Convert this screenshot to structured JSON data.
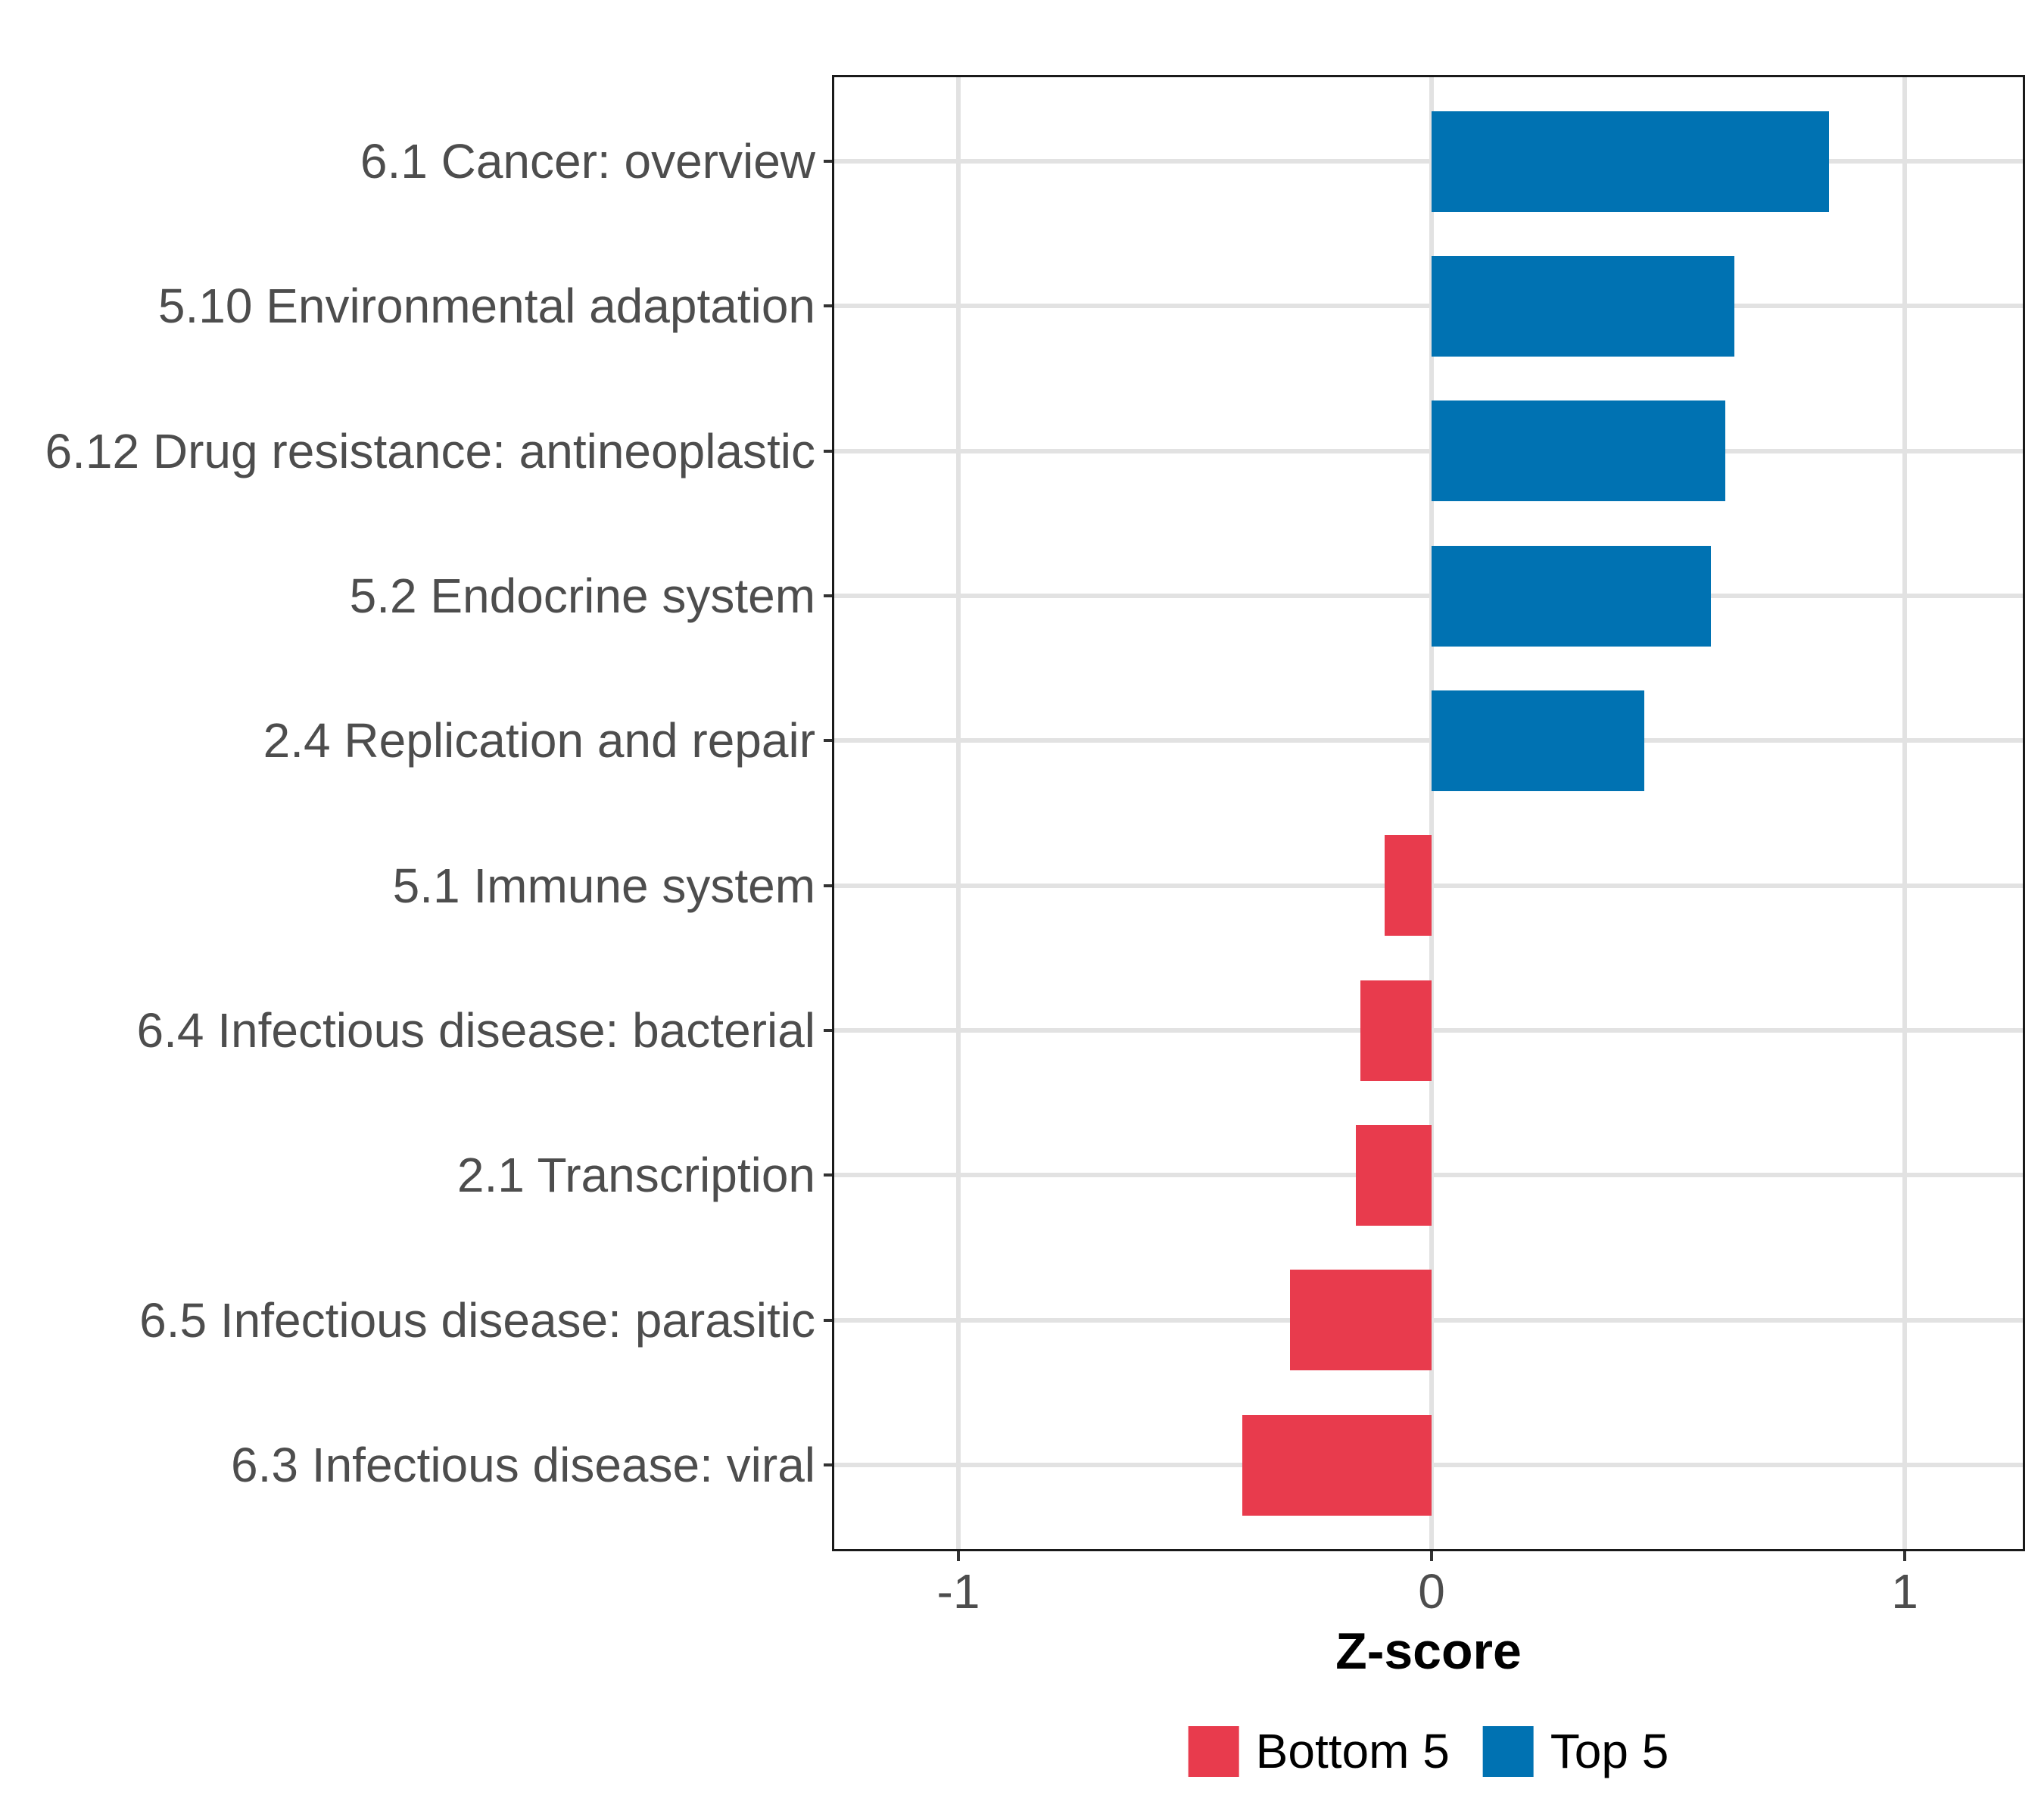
{
  "chart_data": {
    "type": "bar",
    "orientation": "horizontal",
    "title": "",
    "xlabel": "Z-score",
    "ylabel": "",
    "xlim": [
      -1.27,
      1.25
    ],
    "x_ticks": [
      -1,
      0,
      1
    ],
    "x_tick_labels": [
      "-1",
      "0",
      "1"
    ],
    "grid": "major-only",
    "panel_border": true,
    "legend_position": "bottom",
    "categories": [
      "6.1 Cancer: overview",
      "5.10 Environmental adaptation",
      "6.12 Drug resistance: antineoplastic",
      "5.2 Endocrine system",
      "2.4 Replication and repair",
      "5.1 Immune system",
      "6.4 Infectious disease: bacterial",
      "2.1 Transcription",
      "6.5 Infectious disease: parasitic",
      "6.3 Infectious disease: viral"
    ],
    "values": [
      0.84,
      0.64,
      0.62,
      0.59,
      0.45,
      -0.1,
      -0.15,
      -0.16,
      -0.3,
      -0.4
    ],
    "groups": [
      "Top 5",
      "Top 5",
      "Top 5",
      "Top 5",
      "Top 5",
      "Bottom 5",
      "Bottom 5",
      "Bottom 5",
      "Bottom 5",
      "Bottom 5"
    ],
    "series": [
      {
        "name": "Bottom 5",
        "color": "#E83B4D"
      },
      {
        "name": "Top 5",
        "color": "#0072B2"
      }
    ],
    "legend": [
      {
        "label": "Bottom 5",
        "color": "#E83B4D"
      },
      {
        "label": "Top 5",
        "color": "#0072B2"
      }
    ]
  },
  "style_colors": {
    "axis_text": "#4d4d4d",
    "gridline": "#e2e2e2",
    "panel_border": "#1a1a1a",
    "background": "#ffffff"
  }
}
